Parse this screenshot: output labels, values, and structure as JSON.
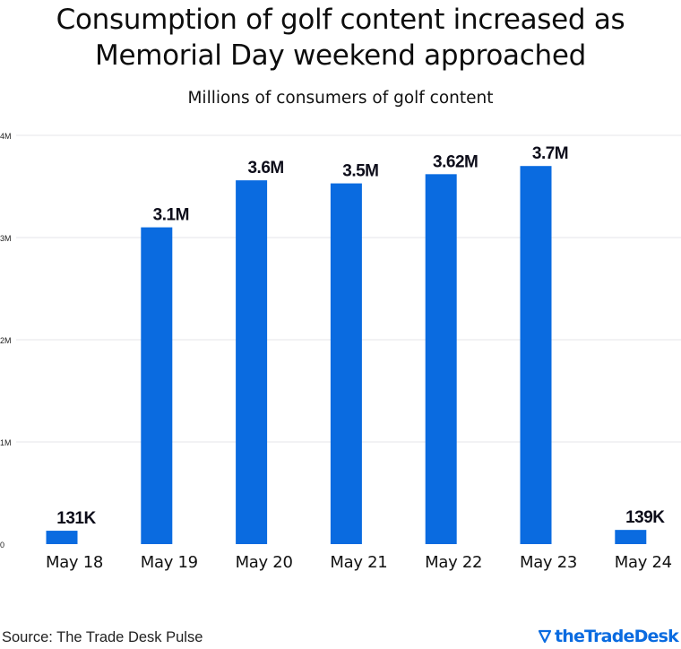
{
  "title_line1": "Consumption of golf content increased as",
  "title_line2": "Memorial Day weekend approached",
  "subtitle": "Millions of consumers of golf content",
  "source": "Source: The Trade Desk Pulse",
  "brand": "theTradeDesk",
  "colors": {
    "bar": "#0a6be0",
    "grid": "#e6e6ea",
    "text": "#111111",
    "brand": "#0a6be0"
  },
  "chart_data": {
    "type": "bar",
    "categories": [
      "May 18",
      "May 19",
      "May 20",
      "May 21",
      "May 22",
      "May 23",
      "May 24"
    ],
    "values": [
      0.131,
      3.1,
      3.56,
      3.53,
      3.62,
      3.7,
      0.139
    ],
    "value_labels": [
      "131K",
      "3.1M",
      "3.6M",
      "3.5M",
      "3.62M",
      "3.7M",
      "139K"
    ],
    "yticks": [
      0,
      1,
      2,
      3,
      4
    ],
    "ytick_labels": [
      "0",
      "1M",
      "2M",
      "3M",
      "4M"
    ],
    "ylim": [
      0,
      4
    ],
    "xlabel": "",
    "ylabel": "",
    "grid": true,
    "legend": "none"
  }
}
